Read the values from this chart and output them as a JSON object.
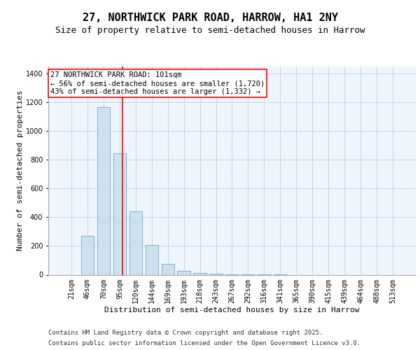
{
  "title": "27, NORTHWICK PARK ROAD, HARROW, HA1 2NY",
  "subtitle": "Size of property relative to semi-detached houses in Harrow",
  "xlabel": "Distribution of semi-detached houses by size in Harrow",
  "ylabel": "Number of semi-detached properties",
  "categories": [
    "21sqm",
    "46sqm",
    "70sqm",
    "95sqm",
    "120sqm",
    "144sqm",
    "169sqm",
    "193sqm",
    "218sqm",
    "243sqm",
    "267sqm",
    "292sqm",
    "316sqm",
    "341sqm",
    "365sqm",
    "390sqm",
    "415sqm",
    "439sqm",
    "464sqm",
    "488sqm",
    "513sqm"
  ],
  "values": [
    0,
    270,
    1165,
    845,
    440,
    205,
    75,
    25,
    10,
    5,
    3,
    2,
    1,
    1,
    0,
    0,
    0,
    0,
    0,
    0,
    0
  ],
  "bar_color": "#cce0f0",
  "bar_edge_color": "#7ab0d4",
  "vline_x": 3.2,
  "vline_color": "red",
  "annotation_text": "27 NORTHWICK PARK ROAD: 101sqm\n← 56% of semi-detached houses are smaller (1,720)\n43% of semi-detached houses are larger (1,332) →",
  "annotation_box_color": "white",
  "annotation_box_edgecolor": "red",
  "ylim": [
    0,
    1450
  ],
  "yticks": [
    0,
    200,
    400,
    600,
    800,
    1000,
    1200,
    1400
  ],
  "footer_line1": "Contains HM Land Registry data © Crown copyright and database right 2025.",
  "footer_line2": "Contains public sector information licensed under the Open Government Licence v3.0.",
  "bg_color": "#eef5fc",
  "title_fontsize": 11,
  "subtitle_fontsize": 9,
  "axis_label_fontsize": 8,
  "tick_fontsize": 7,
  "annotation_fontsize": 7.5,
  "footer_fontsize": 6.5
}
